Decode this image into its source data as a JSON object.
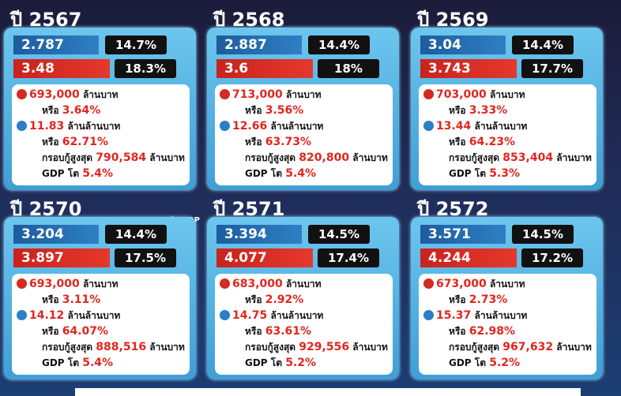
{
  "per_gdp_note": "ต่อ GDP",
  "panels": [
    {
      "year": "ปี 2567",
      "blue_value": "2.787",
      "blue_pct": "14.7%",
      "red_value": "3.48",
      "red_pct": "18.3%",
      "deficit": "693,000",
      "deficit_unit": "ล้านบาท",
      "deficit_or": "หรือ",
      "deficit_pct": "3.64%",
      "debt": "11.83",
      "debt_unit": "ล้านล้านบาท",
      "debt_or": "หรือ",
      "debt_pct": "62.71%",
      "ceiling_label": "กรอบกู้สูงสุด",
      "ceiling": "790,584",
      "ceiling_unit": "ล้านบาท",
      "gdp_label": "GDP โต",
      "gdp": "5.4%"
    },
    {
      "year": "ปี 2568",
      "blue_value": "2.887",
      "blue_pct": "14.4%",
      "red_value": "3.6",
      "red_pct": "18%",
      "deficit": "713,000",
      "deficit_unit": "ล้านบาท",
      "deficit_or": "หรือ",
      "deficit_pct": "3.56%",
      "debt": "12.66",
      "debt_unit": "ล้านล้านบาท",
      "debt_or": "หรือ",
      "debt_pct": "63.73%",
      "ceiling_label": "กรอบกู้สูงสุด",
      "ceiling": "820,800",
      "ceiling_unit": "ล้านบาท",
      "gdp_label": "GDP โต",
      "gdp": "5.4%"
    },
    {
      "year": "ปี 2569",
      "blue_value": "3.04",
      "blue_pct": "14.4%",
      "red_value": "3.743",
      "red_pct": "17.7%",
      "deficit": "703,000",
      "deficit_unit": "ล้านบาท",
      "deficit_or": "หรือ",
      "deficit_pct": "3.33%",
      "debt": "13.44",
      "debt_unit": "ล้านล้านบาท",
      "debt_or": "หรือ",
      "debt_pct": "64.23%",
      "ceiling_label": "กรอบกู้สูงสุด",
      "ceiling": "853,404",
      "ceiling_unit": "ล้านบาท",
      "gdp_label": "GDP โต",
      "gdp": "5.3%"
    },
    {
      "year": "ปี 2570",
      "blue_value": "3.204",
      "blue_pct": "14.4%",
      "red_value": "3.897",
      "red_pct": "17.5%",
      "deficit": "693,000",
      "deficit_unit": "ล้านบาท",
      "deficit_or": "หรือ",
      "deficit_pct": "3.11%",
      "debt": "14.12",
      "debt_unit": "ล้านล้านบาท",
      "debt_or": "หรือ",
      "debt_pct": "64.07%",
      "ceiling_label": "กรอบกู้สูงสุด",
      "ceiling": "888,516",
      "ceiling_unit": "ล้านบาท",
      "gdp_label": "GDP โต",
      "gdp": "5.4%"
    },
    {
      "year": "ปี 2571",
      "blue_value": "3.394",
      "blue_pct": "14.5%",
      "red_value": "4.077",
      "red_pct": "17.4%",
      "deficit": "683,000",
      "deficit_unit": "ล้านบาท",
      "deficit_or": "หรือ",
      "deficit_pct": "2.92%",
      "debt": "14.75",
      "debt_unit": "ล้านล้านบาท",
      "debt_or": "หรือ",
      "debt_pct": "63.61%",
      "ceiling_label": "กรอบกู้สูงสุด",
      "ceiling": "929,556",
      "ceiling_unit": "ล้านบาท",
      "gdp_label": "GDP โต",
      "gdp": "5.2%"
    },
    {
      "year": "ปี 2572",
      "blue_value": "3.571",
      "blue_pct": "14.5%",
      "red_value": "4.244",
      "red_pct": "17.2%",
      "deficit": "673,000",
      "deficit_unit": "ล้านบาท",
      "deficit_or": "หรือ",
      "deficit_pct": "2.73%",
      "debt": "15.37",
      "debt_unit": "ล้านล้านบาท",
      "debt_or": "หรือ",
      "debt_pct": "62.98%",
      "ceiling_label": "กรอบกู้สูงสุด",
      "ceiling": "967,632",
      "ceiling_unit": "ล้านบาท",
      "gdp_label": "GDP โต",
      "gdp": "5.2%"
    }
  ]
}
